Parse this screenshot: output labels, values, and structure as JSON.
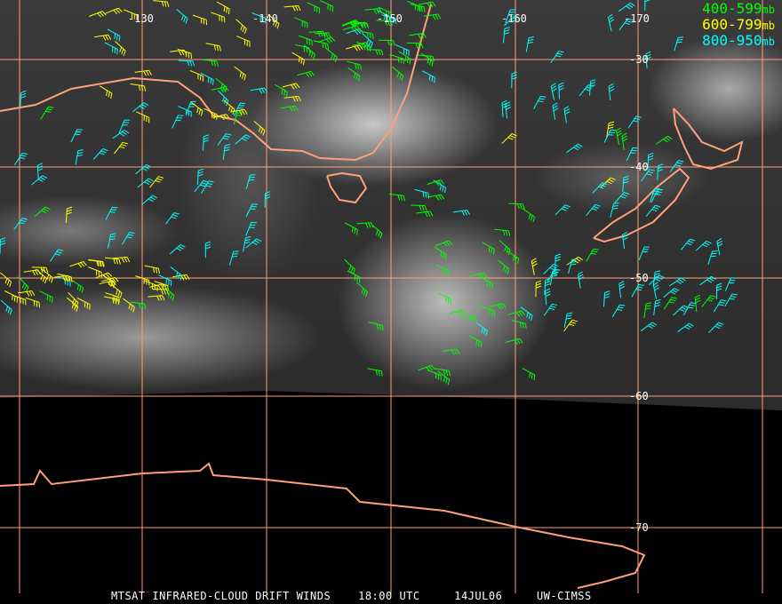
{
  "map": {
    "longitude_labels": [
      "-130",
      "-140",
      "-150",
      "-160",
      "-170"
    ],
    "latitude_labels": [
      "-30",
      "-40",
      "-50",
      "-60",
      "-70"
    ],
    "legend": [
      {
        "label": "400-599",
        "unit": "mb",
        "color": "#00ff00"
      },
      {
        "label": "600-799",
        "unit": "mb",
        "color": "#ffff00"
      },
      {
        "label": "800-950",
        "unit": "mb",
        "color": "#00ffff"
      }
    ],
    "grid_color": "#ffa07a",
    "coast_color": "#ffa07a"
  },
  "caption": {
    "product": "MTSAT INFRARED-CLOUD DRIFT WINDS",
    "time": "18:00 UTC",
    "date": "14JUL06",
    "source": "UW-CIMSS"
  }
}
